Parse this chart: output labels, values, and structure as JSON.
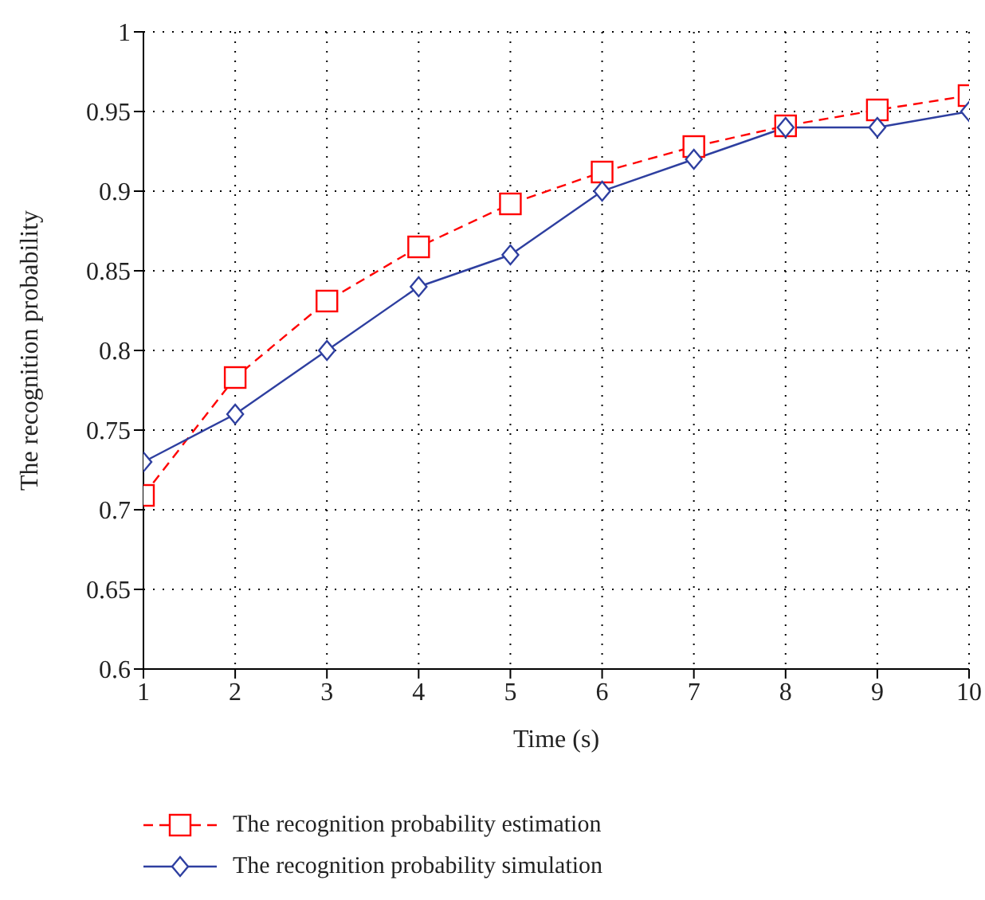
{
  "chart_data": {
    "type": "line",
    "xlabel": "Time (s)",
    "ylabel": "The recognition probability",
    "x": [
      1,
      2,
      3,
      4,
      5,
      6,
      7,
      8,
      9,
      10
    ],
    "series": [
      {
        "name": "The recognition probability estimation",
        "color": "#ff0000",
        "marker": "square",
        "line_style": "dashed",
        "values": [
          0.709,
          0.783,
          0.831,
          0.865,
          0.892,
          0.912,
          0.928,
          0.941,
          0.951,
          0.96
        ]
      },
      {
        "name": "The recognition probability simulation",
        "color": "#2e3fa0",
        "marker": "diamond",
        "line_style": "solid",
        "values": [
          0.73,
          0.76,
          0.8,
          0.84,
          0.86,
          0.9,
          0.92,
          0.94,
          0.94,
          0.95
        ]
      }
    ],
    "xlim": [
      1,
      10
    ],
    "xticks": [
      1,
      2,
      3,
      4,
      5,
      6,
      7,
      8,
      9,
      10
    ],
    "ylim": [
      0.6,
      1
    ],
    "yticks": [
      0.6,
      0.65,
      0.7,
      0.75,
      0.8,
      0.85,
      0.9,
      0.95,
      1
    ],
    "grid": true,
    "legend": "bottom"
  }
}
